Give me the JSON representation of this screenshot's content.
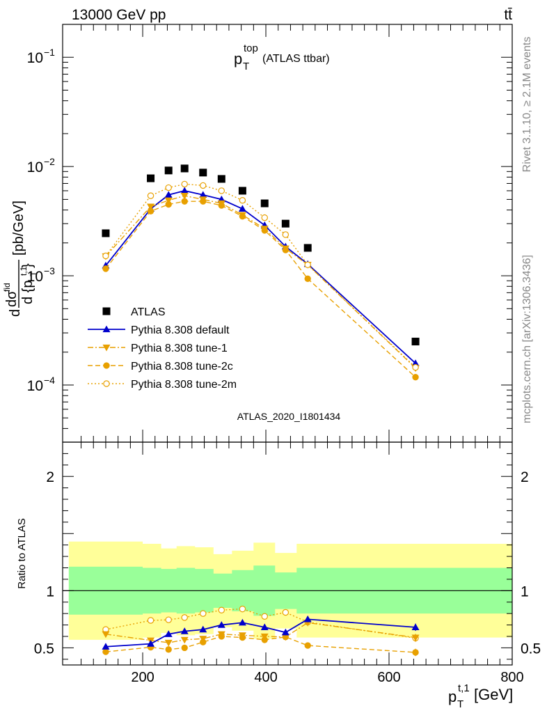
{
  "header": {
    "beam": "13000 GeV pp",
    "process": "tt̄"
  },
  "side_labels": {
    "rivet": "Rivet 3.1.10, ≥ 2.1M events",
    "mcplots": "mcplots.cern.ch [arXiv:1306.3436]"
  },
  "chart_data": [
    {
      "type": "scatter",
      "panel": "main",
      "title": "p_T^top (ATLAS ttbar)",
      "ylabel": "d dσ^fid / d{p_T^t,1} [pb/GeV]",
      "yscale": "log",
      "xlim": [
        70,
        800
      ],
      "ylim": [
        3e-05,
        0.2
      ],
      "y_ticks": [
        {
          "value": 0.1,
          "label": "10^−1"
        },
        {
          "value": 0.01,
          "label": "10^−2"
        },
        {
          "value": 0.001,
          "label": "10^−3"
        },
        {
          "value": 0.0001,
          "label": "10^−4"
        }
      ],
      "watermark": "ATLAS_2020_I1801434",
      "legend_position": "lower-left",
      "x": [
        140,
        213,
        242,
        268,
        298,
        328,
        362,
        398,
        432,
        468,
        643
      ],
      "series": [
        {
          "name": "ATLAS",
          "color": "#000000",
          "marker": "square",
          "values": [
            0.00245,
            0.0078,
            0.0092,
            0.0096,
            0.0088,
            0.0077,
            0.006,
            0.0046,
            0.003,
            0.0018,
            0.00025
          ]
        },
        {
          "name": "Pythia 8.308 default",
          "color": "#0000cc",
          "marker": "triangle-up",
          "line": "solid",
          "values": [
            0.00124,
            0.0041,
            0.0055,
            0.006,
            0.0055,
            0.005,
            0.0041,
            0.0029,
            0.00185,
            0.00128,
            0.000158
          ]
        },
        {
          "name": "Pythia 8.308 tune-1",
          "color": "#e8a000",
          "marker": "triangle-down",
          "line": "dashdot",
          "values": [
            0.00151,
            0.0043,
            0.0049,
            0.0054,
            0.005,
            0.0046,
            0.0036,
            0.0027,
            0.00178,
            0.00126,
            0.000143
          ]
        },
        {
          "name": "Pythia 8.308 tune-2c",
          "color": "#e8a000",
          "marker": "circle",
          "line": "dashed",
          "values": [
            0.00116,
            0.0039,
            0.0045,
            0.0048,
            0.0048,
            0.0044,
            0.0035,
            0.0026,
            0.00172,
            0.00094,
            0.000118
          ]
        },
        {
          "name": "Pythia 8.308 tune-2m",
          "color": "#e8a000",
          "marker": "open-circle",
          "line": "dotted",
          "values": [
            0.00152,
            0.0054,
            0.0064,
            0.0069,
            0.0067,
            0.006,
            0.0049,
            0.0034,
            0.00238,
            0.00126,
            0.000145
          ]
        }
      ]
    },
    {
      "type": "scatter",
      "panel": "ratio",
      "ylabel": "Ratio to ATLAS",
      "xlabel": "p_T^t,1 [GeV]",
      "xlim": [
        70,
        800
      ],
      "ylim": [
        0.35,
        2.3
      ],
      "x_ticks": [
        200,
        400,
        600,
        800
      ],
      "y_ticks": [
        0.5,
        1,
        2
      ],
      "bands": {
        "bin_edges": [
          80,
          200,
          230,
          255,
          285,
          315,
          345,
          380,
          415,
          450,
          500,
          800
        ],
        "stat_upper": [
          1.21,
          1.2,
          1.19,
          1.2,
          1.19,
          1.15,
          1.18,
          1.22,
          1.16,
          1.2,
          1.2
        ],
        "stat_lower": [
          0.79,
          0.8,
          0.81,
          0.8,
          0.81,
          0.85,
          0.82,
          0.78,
          0.84,
          0.8,
          0.8
        ],
        "total_upper": [
          1.43,
          1.41,
          1.37,
          1.39,
          1.38,
          1.32,
          1.35,
          1.42,
          1.33,
          1.41,
          1.41
        ],
        "total_lower": [
          0.57,
          0.59,
          0.63,
          0.61,
          0.62,
          0.68,
          0.65,
          0.58,
          0.67,
          0.59,
          0.59
        ],
        "stat_color": "#99ff99",
        "total_color": "#ffff99"
      },
      "x": [
        140,
        213,
        242,
        268,
        298,
        328,
        362,
        398,
        432,
        468,
        643
      ],
      "series": [
        {
          "name": "Pythia 8.308 default",
          "color": "#0000cc",
          "marker": "triangle-up",
          "line": "solid",
          "values": [
            0.51,
            0.535,
            0.62,
            0.645,
            0.66,
            0.7,
            0.72,
            0.68,
            0.635,
            0.75,
            0.68
          ]
        },
        {
          "name": "Pythia 8.308 tune-1",
          "color": "#e8a000",
          "marker": "triangle-down",
          "line": "dashdot",
          "values": [
            0.62,
            0.565,
            0.545,
            0.57,
            0.58,
            0.62,
            0.61,
            0.6,
            0.595,
            0.72,
            0.59
          ]
        },
        {
          "name": "Pythia 8.308 tune-2c",
          "color": "#e8a000",
          "marker": "circle",
          "line": "dashed",
          "values": [
            0.465,
            0.505,
            0.485,
            0.5,
            0.55,
            0.6,
            0.59,
            0.57,
            0.595,
            0.52,
            0.46
          ]
        },
        {
          "name": "Pythia 8.308 tune-2m",
          "color": "#e8a000",
          "marker": "open-circle",
          "line": "dotted",
          "values": [
            0.66,
            0.74,
            0.745,
            0.765,
            0.8,
            0.83,
            0.84,
            0.775,
            0.81,
            0.725,
            0.585
          ]
        }
      ]
    }
  ]
}
